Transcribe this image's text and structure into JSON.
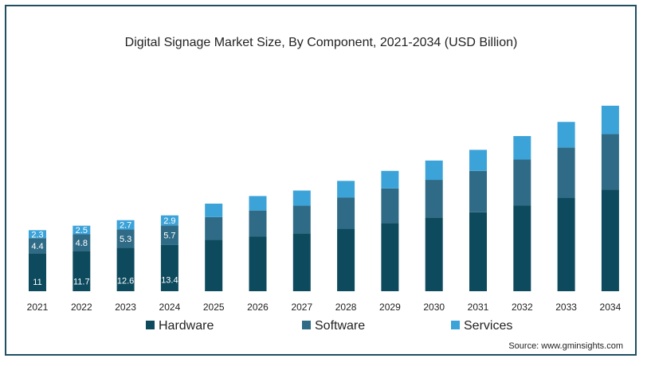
{
  "chart_data": {
    "type": "bar",
    "stacked": true,
    "title": "Digital Signage Market Size, By Component, 2021-2034 (USD Billion)",
    "categories": [
      "2021",
      "2022",
      "2023",
      "2024",
      "2025",
      "2026",
      "2027",
      "2028",
      "2029",
      "2030",
      "2031",
      "2032",
      "2033",
      "2034"
    ],
    "series": [
      {
        "name": "Hardware",
        "color": "#0d4a5e",
        "values": [
          11,
          11.7,
          12.6,
          13.4,
          14.9,
          15.9,
          16.8,
          18.1,
          19.8,
          21.4,
          22.9,
          24.9,
          27.1,
          29.5
        ],
        "labels": [
          "11",
          "11.7",
          "12.6",
          "13.4",
          "",
          "",
          "",
          "",
          "",
          "",
          "",
          "",
          "",
          ""
        ]
      },
      {
        "name": "Software",
        "color": "#2f6b86",
        "values": [
          4.4,
          4.8,
          5.3,
          5.7,
          6.6,
          7.5,
          8.0,
          9.1,
          10.0,
          10.9,
          12.0,
          13.3,
          14.6,
          16.1
        ],
        "labels": [
          "4.4",
          "4.8",
          "5.3",
          "5.7",
          "",
          "",
          "",
          "",
          "",
          "",
          "",
          "",
          "",
          ""
        ]
      },
      {
        "name": "Services",
        "color": "#3ca3d9",
        "values": [
          2.3,
          2.5,
          2.7,
          2.9,
          3.9,
          4.2,
          4.4,
          4.8,
          5.1,
          5.6,
          6.1,
          6.8,
          7.4,
          8.2
        ],
        "labels": [
          "2.3",
          "2.5",
          "2.7",
          "2.9",
          "",
          "",
          "",
          "",
          "",
          "",
          "",
          "",
          "",
          ""
        ]
      }
    ],
    "ylim": [
      0,
      60
    ],
    "grid": false,
    "legend_position": "bottom",
    "source": "Source: www.gminsights.com"
  }
}
